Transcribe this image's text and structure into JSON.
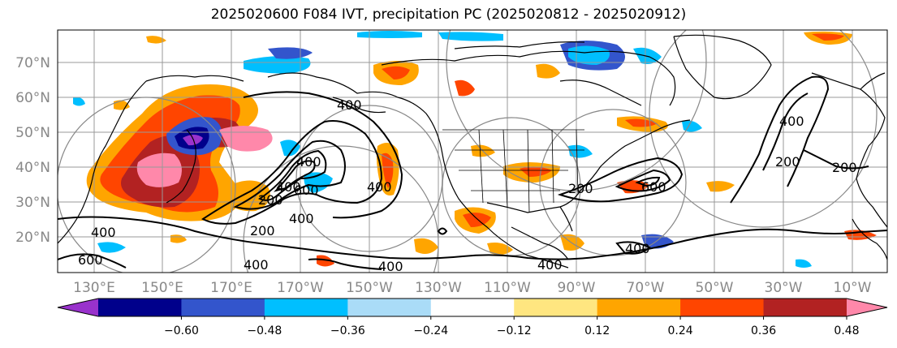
{
  "title": "2025020600 F084 IVT, precipitation PC (2025020812 - 2025020912)",
  "lat_labels": [
    "70°N",
    "60°N",
    "50°N",
    "40°N",
    "30°N",
    "20°N"
  ],
  "lon_labels": [
    "130°E",
    "150°E",
    "170°E",
    "170°W",
    "150°W",
    "130°W",
    "110°W",
    "90°W",
    "70°W",
    "50°W",
    "30°W",
    "10°W"
  ],
  "contour_labels": [
    "400",
    "200",
    "400",
    "600",
    "400",
    "400",
    "200",
    "400",
    "600",
    "400",
    "400",
    "200",
    "600",
    "400",
    "200",
    "400",
    "200",
    "400",
    "400"
  ],
  "colorbar": {
    "colors": [
      "#9932cc",
      "#00008b",
      "#3355cc",
      "#00bfff",
      "#aadcf7",
      "#ffffff",
      "#ffe680",
      "#ffa500",
      "#ff4500",
      "#b22222",
      "#ff88aa"
    ],
    "tick_labels": [
      "−0.60",
      "−0.48",
      "−0.36",
      "−0.24",
      "−0.12",
      "0.12",
      "0.24",
      "0.36",
      "0.48",
      "0.60"
    ]
  }
}
